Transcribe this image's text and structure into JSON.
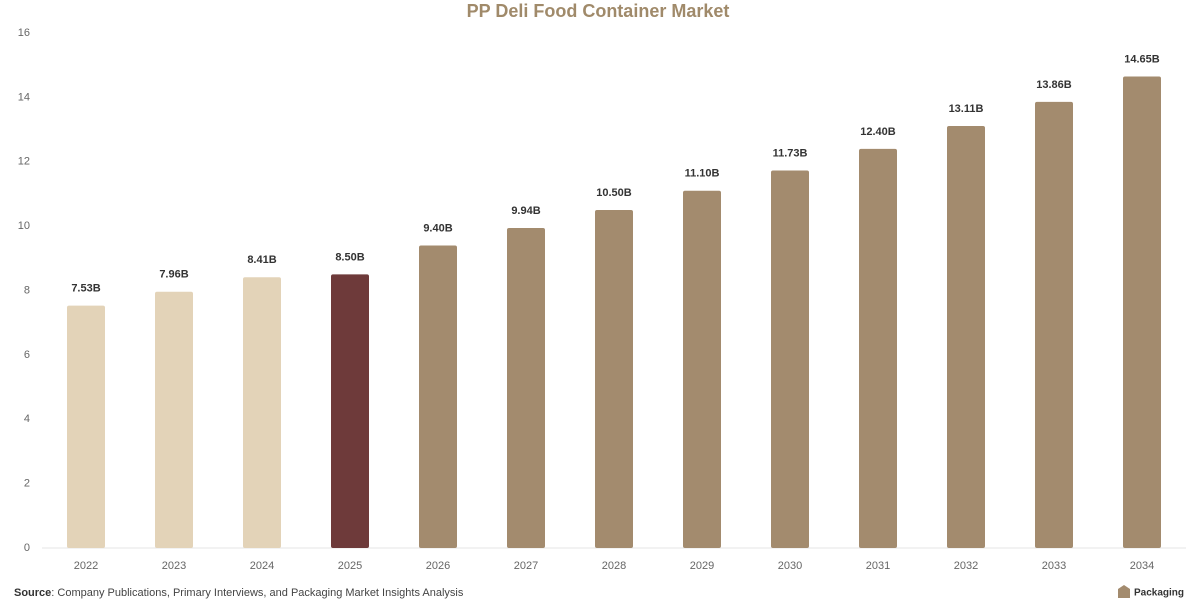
{
  "chart_data": {
    "type": "bar",
    "title": "PP Deli Food Container Market",
    "categories": [
      "2022",
      "2023",
      "2024",
      "2025",
      "2026",
      "2027",
      "2028",
      "2029",
      "2030",
      "2031",
      "2032",
      "2033",
      "2034"
    ],
    "values": [
      7.53,
      7.96,
      8.41,
      8.5,
      9.4,
      9.94,
      10.5,
      11.1,
      11.73,
      12.4,
      13.11,
      13.86,
      14.65
    ],
    "value_labels": [
      "7.53B",
      "7.96B",
      "8.41B",
      "8.50B",
      "9.40B",
      "9.94B",
      "10.50B",
      "11.10B",
      "11.73B",
      "12.40B",
      "13.11B",
      "13.86B",
      "14.65B"
    ],
    "colors": [
      "#e3d3b8",
      "#e3d3b8",
      "#e3d3b8",
      "#6e3a3a",
      "#a38b6e",
      "#a38b6e",
      "#a38b6e",
      "#a38b6e",
      "#a38b6e",
      "#a38b6e",
      "#a38b6e",
      "#a38b6e",
      "#a38b6e"
    ],
    "ylim": [
      0,
      16
    ],
    "yticks": [
      0,
      2,
      4,
      6,
      8,
      10,
      12,
      14,
      16
    ],
    "grid": false
  },
  "footer": {
    "source_label": "Source",
    "source_text": ": Company Publications, Primary Interviews, and Packaging Market Insights Analysis",
    "logo_text": "Packaging"
  }
}
